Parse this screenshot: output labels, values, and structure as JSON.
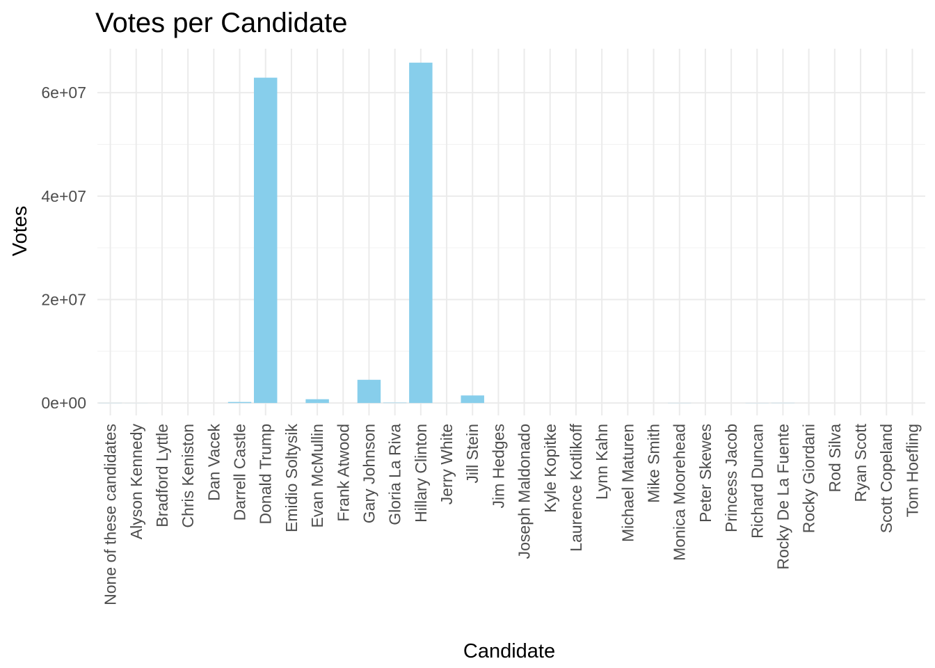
{
  "chart_data": {
    "type": "bar",
    "title": "Votes per Candidate",
    "xlabel": "Candidate",
    "ylabel": "Votes",
    "ylim": [
      -2400000,
      68500000
    ],
    "yticks": [
      0,
      20000000,
      40000000,
      60000000
    ],
    "ytick_labels": [
      "0e+00",
      "2e+07",
      "4e+07",
      "6e+07"
    ],
    "bar_color": "#87ceeb",
    "grid": true,
    "legend": "none",
    "categories": [
      "None of these candidates",
      "Alyson Kennedy",
      "Bradford Lyttle",
      "Chris Keniston",
      "Dan Vacek",
      "Darrell Castle",
      "Donald Trump",
      "Emidio Soltysik",
      "Evan McMullin",
      "Frank Atwood",
      "Gary Johnson",
      "Gloria La Riva",
      "Hillary Clinton",
      "Jerry White",
      "Jill Stein",
      "Jim Hedges",
      "Joseph Maldonado",
      "Kyle Kopitke",
      "Laurence Kotlikoff",
      "Lynn Kahn",
      "Michael Maturen",
      "Mike Smith",
      "Monica Moorehead",
      "Peter Skewes",
      "Princess Jacob",
      "Richard Duncan",
      "Rocky De La Fuente",
      "Rocky Giordani",
      "Rod Silva",
      "Ryan Scott",
      "Scott Copeland",
      "Tom Hoefling"
    ],
    "values": [
      28000,
      12000,
      1000,
      1000,
      1000,
      200000,
      62900000,
      4000,
      732000,
      0,
      4490000,
      74000,
      65800000,
      9000,
      1460000,
      0,
      0,
      0,
      0,
      0,
      0,
      0,
      26000,
      0,
      0,
      24000,
      33000,
      0,
      0,
      0,
      0,
      0
    ]
  }
}
